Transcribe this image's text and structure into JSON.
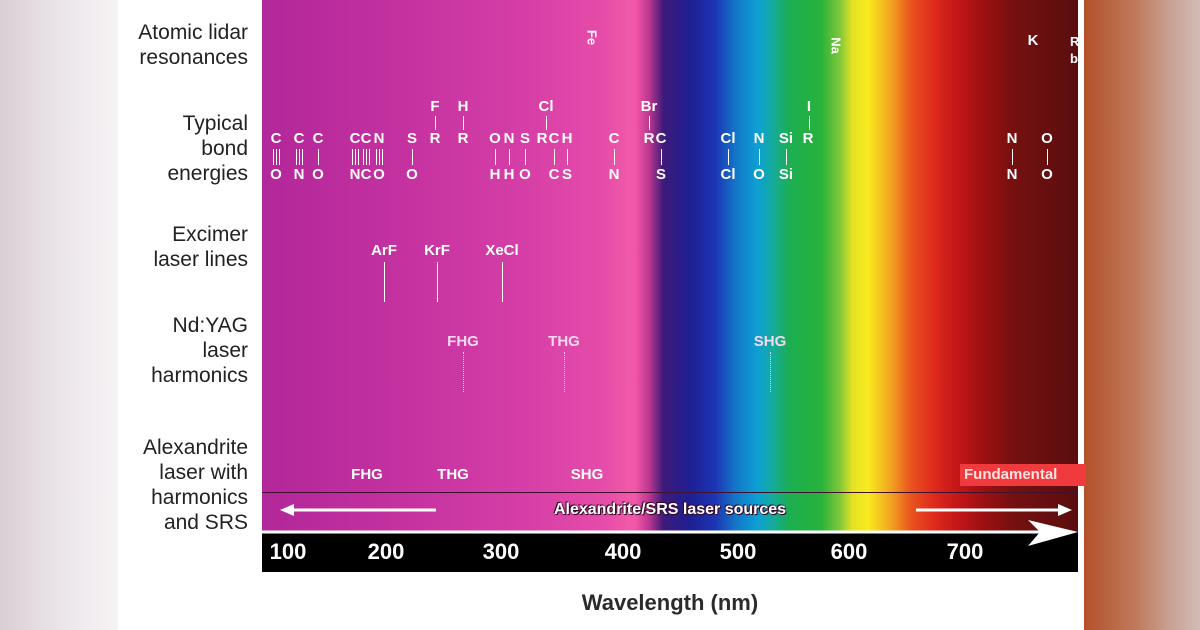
{
  "rows": {
    "atomic": "Atomic lidar\nresonances",
    "bond": "Typical\nbond\nenergies",
    "excimer": "Excimer\nlaser lines",
    "ndyag": "Nd:YAG\nlaser\nharmonics",
    "alex": "Alexandrite\nlaser with\nharmonics\nand SRS"
  },
  "atomic": {
    "fe": "Fe",
    "na": "Na",
    "k": "K",
    "rb": "Rb"
  },
  "bond_top": {
    "f": "F",
    "h": "H",
    "cl": "Cl",
    "br": "Br",
    "i": "I"
  },
  "bonds": [
    {
      "a": "C",
      "b": "O",
      "m": 3
    },
    {
      "a": "C",
      "b": "N",
      "m": 3
    },
    {
      "a": "C",
      "b": "O",
      "m": 1
    },
    {
      "a": "C",
      "b": "N",
      "m": 3
    },
    {
      "a": "C",
      "b": "C",
      "m": 3
    },
    {
      "a": "N",
      "b": "O",
      "m": 3
    },
    {
      "a": "S",
      "b": "O",
      "m": 1
    },
    {
      "a": "R",
      "b": "",
      "m": 0
    },
    {
      "a": "R",
      "b": "",
      "m": 0
    },
    {
      "a": "O",
      "b": "H",
      "m": 1
    },
    {
      "a": "N",
      "b": "H",
      "m": 1
    },
    {
      "a": "S",
      "b": "O",
      "m": 1
    },
    {
      "a": "R",
      "b": "",
      "m": 0
    },
    {
      "a": "C",
      "b": "C",
      "m": 1
    },
    {
      "a": "H",
      "b": "S",
      "m": 1
    },
    {
      "a": "C",
      "b": "N",
      "m": 1
    },
    {
      "a": "R",
      "b": "",
      "m": 0
    },
    {
      "a": "C",
      "b": "S",
      "m": 1
    },
    {
      "a": "Cl",
      "b": "Cl",
      "m": 1
    },
    {
      "a": "N",
      "b": "O",
      "m": 1
    },
    {
      "a": "Si",
      "b": "Si",
      "m": 1
    },
    {
      "a": "R",
      "b": "",
      "m": 0
    },
    {
      "a": "N",
      "b": "N",
      "m": 1
    },
    {
      "a": "O",
      "b": "O",
      "m": 1
    }
  ],
  "excimer": {
    "arf": "ArF",
    "krf": "KrF",
    "xecl": "XeCl"
  },
  "ndyag": {
    "fhg": "FHG",
    "thg": "THG",
    "shg": "SHG"
  },
  "alex": {
    "fhg": "FHG",
    "thg": "THG",
    "shg": "SHG",
    "fundamental": "Fundamental",
    "srs": "Alexandrite/SRS laser sources"
  },
  "axis": {
    "ticks": [
      "100",
      "200",
      "300",
      "400",
      "500",
      "600",
      "700"
    ],
    "label": "Wavelength (nm)"
  }
}
